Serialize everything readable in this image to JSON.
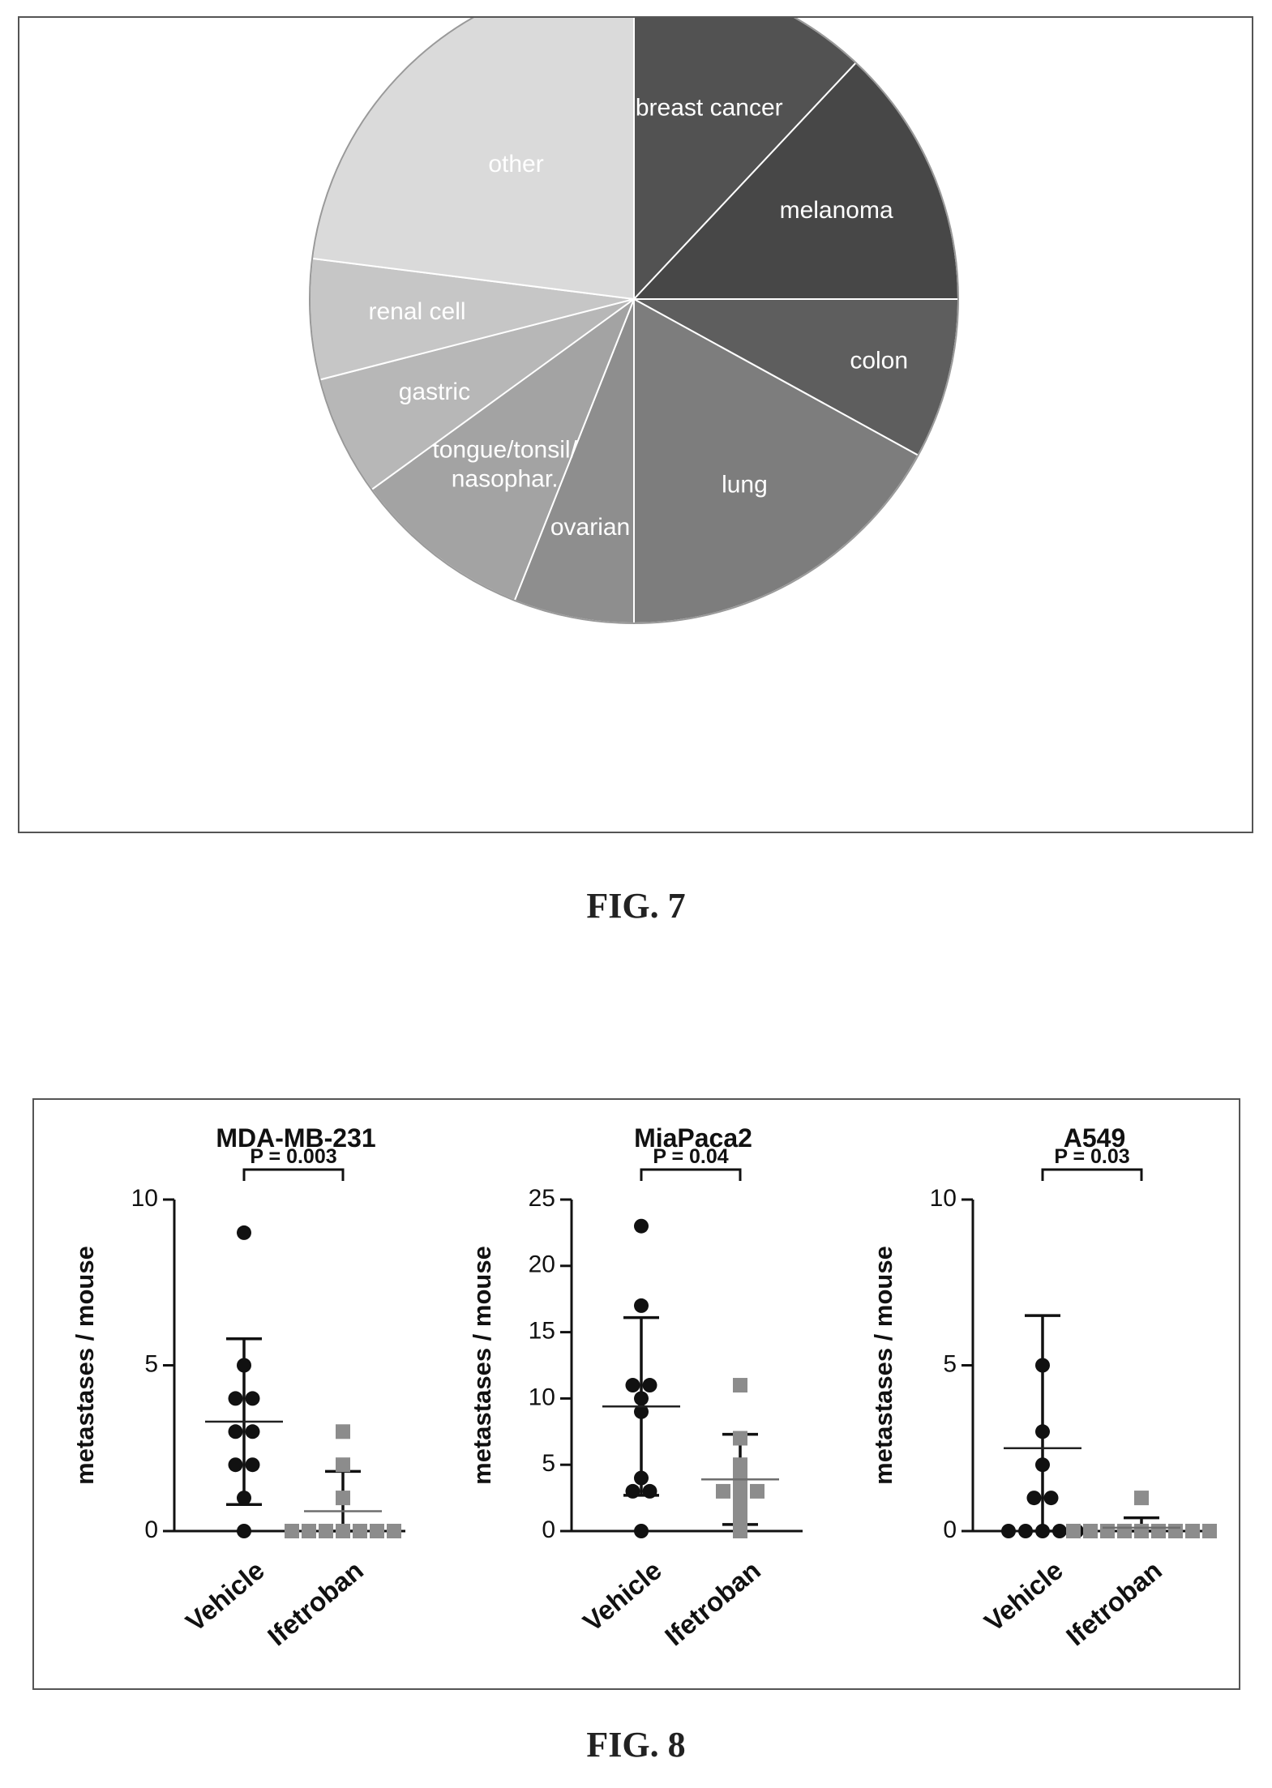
{
  "figures": {
    "fig7_caption": "FIG. 7",
    "fig8_caption": "FIG. 8"
  },
  "chart_data": [
    {
      "type": "pie",
      "title": "",
      "slices": [
        {
          "label": "breast cancer",
          "value": 12,
          "color": "#525252",
          "text_color": "#ffffff"
        },
        {
          "label": "melanoma",
          "value": 13,
          "color": "#474747",
          "text_color": "#ffffff"
        },
        {
          "label": "colon",
          "value": 8,
          "color": "#5e5e5e",
          "text_color": "#ffffff"
        },
        {
          "label": "lung",
          "value": 17,
          "color": "#7d7d7d",
          "text_color": "#ffffff"
        },
        {
          "label": "ovarian",
          "value": 6,
          "color": "#8e8e8e",
          "text_color": "#ffffff"
        },
        {
          "label": "tongue/tonsil/ nasophar.",
          "value": 9,
          "color": "#a3a3a3",
          "text_color": "#ffffff"
        },
        {
          "label": "gastric",
          "value": 6,
          "color": "#b7b7b7",
          "text_color": "#ffffff"
        },
        {
          "label": "renal cell",
          "value": 6,
          "color": "#c6c6c6",
          "text_color": "#ffffff"
        },
        {
          "label": "other",
          "value": 23,
          "color": "#dadada",
          "text_color": "#ffffff"
        }
      ]
    },
    {
      "type": "scatter",
      "title": "MDA-MB-231",
      "ylabel": "metastases / mouse",
      "ylim": [
        0,
        10
      ],
      "yticks": [
        0,
        5,
        10
      ],
      "categories": [
        "Vehicle",
        "Ifetroban"
      ],
      "p_label": "P = 0.003",
      "series": [
        {
          "name": "Vehicle",
          "marker": "circle",
          "color": "#111111",
          "values": [
            9,
            5,
            4,
            4,
            3,
            3,
            2,
            2,
            1,
            0
          ],
          "mean": 3.3,
          "sd_low": 0.8,
          "sd_high": 5.8
        },
        {
          "name": "Ifetroban",
          "marker": "square",
          "color": "#8c8c8c",
          "values": [
            3,
            2,
            1,
            0,
            0,
            0,
            0,
            0,
            0,
            0
          ],
          "mean": 0.6,
          "sd_low": 0,
          "sd_high": 1.8
        }
      ]
    },
    {
      "type": "scatter",
      "title": "MiaPaca2",
      "ylabel": "metastases / mouse",
      "ylim": [
        0,
        25
      ],
      "yticks": [
        0,
        5,
        10,
        15,
        20,
        25
      ],
      "categories": [
        "Vehicle",
        "Ifetroban"
      ],
      "p_label": "P = 0.04",
      "series": [
        {
          "name": "Vehicle",
          "marker": "circle",
          "color": "#111111",
          "values": [
            23,
            17,
            11,
            11,
            10,
            9,
            4,
            3,
            3,
            0
          ],
          "mean": 9.4,
          "sd_low": 2.7,
          "sd_high": 16.1
        },
        {
          "name": "Ifetroban",
          "marker": "square",
          "color": "#8c8c8c",
          "values": [
            11,
            7,
            5,
            4,
            3,
            3,
            3,
            2,
            1,
            0
          ],
          "mean": 3.9,
          "sd_low": 0.5,
          "sd_high": 7.3
        }
      ]
    },
    {
      "type": "scatter",
      "title": "A549",
      "ylabel": "metastases / mouse",
      "ylim": [
        0,
        10
      ],
      "yticks": [
        0,
        5,
        10
      ],
      "categories": [
        "Vehicle",
        "Ifetroban"
      ],
      "p_label": "P = 0.03",
      "series": [
        {
          "name": "Vehicle",
          "marker": "circle",
          "color": "#111111",
          "values": [
            5,
            3,
            2,
            1,
            1,
            0,
            0,
            0,
            0,
            0
          ],
          "mean": 2.5,
          "sd_low": 0,
          "sd_high": 6.5
        },
        {
          "name": "Ifetroban",
          "marker": "square",
          "color": "#8c8c8c",
          "values": [
            1,
            0,
            0,
            0,
            0,
            0,
            0,
            0,
            0,
            0
          ],
          "mean": 0.1,
          "sd_low": 0,
          "sd_high": 0.4
        }
      ]
    }
  ]
}
